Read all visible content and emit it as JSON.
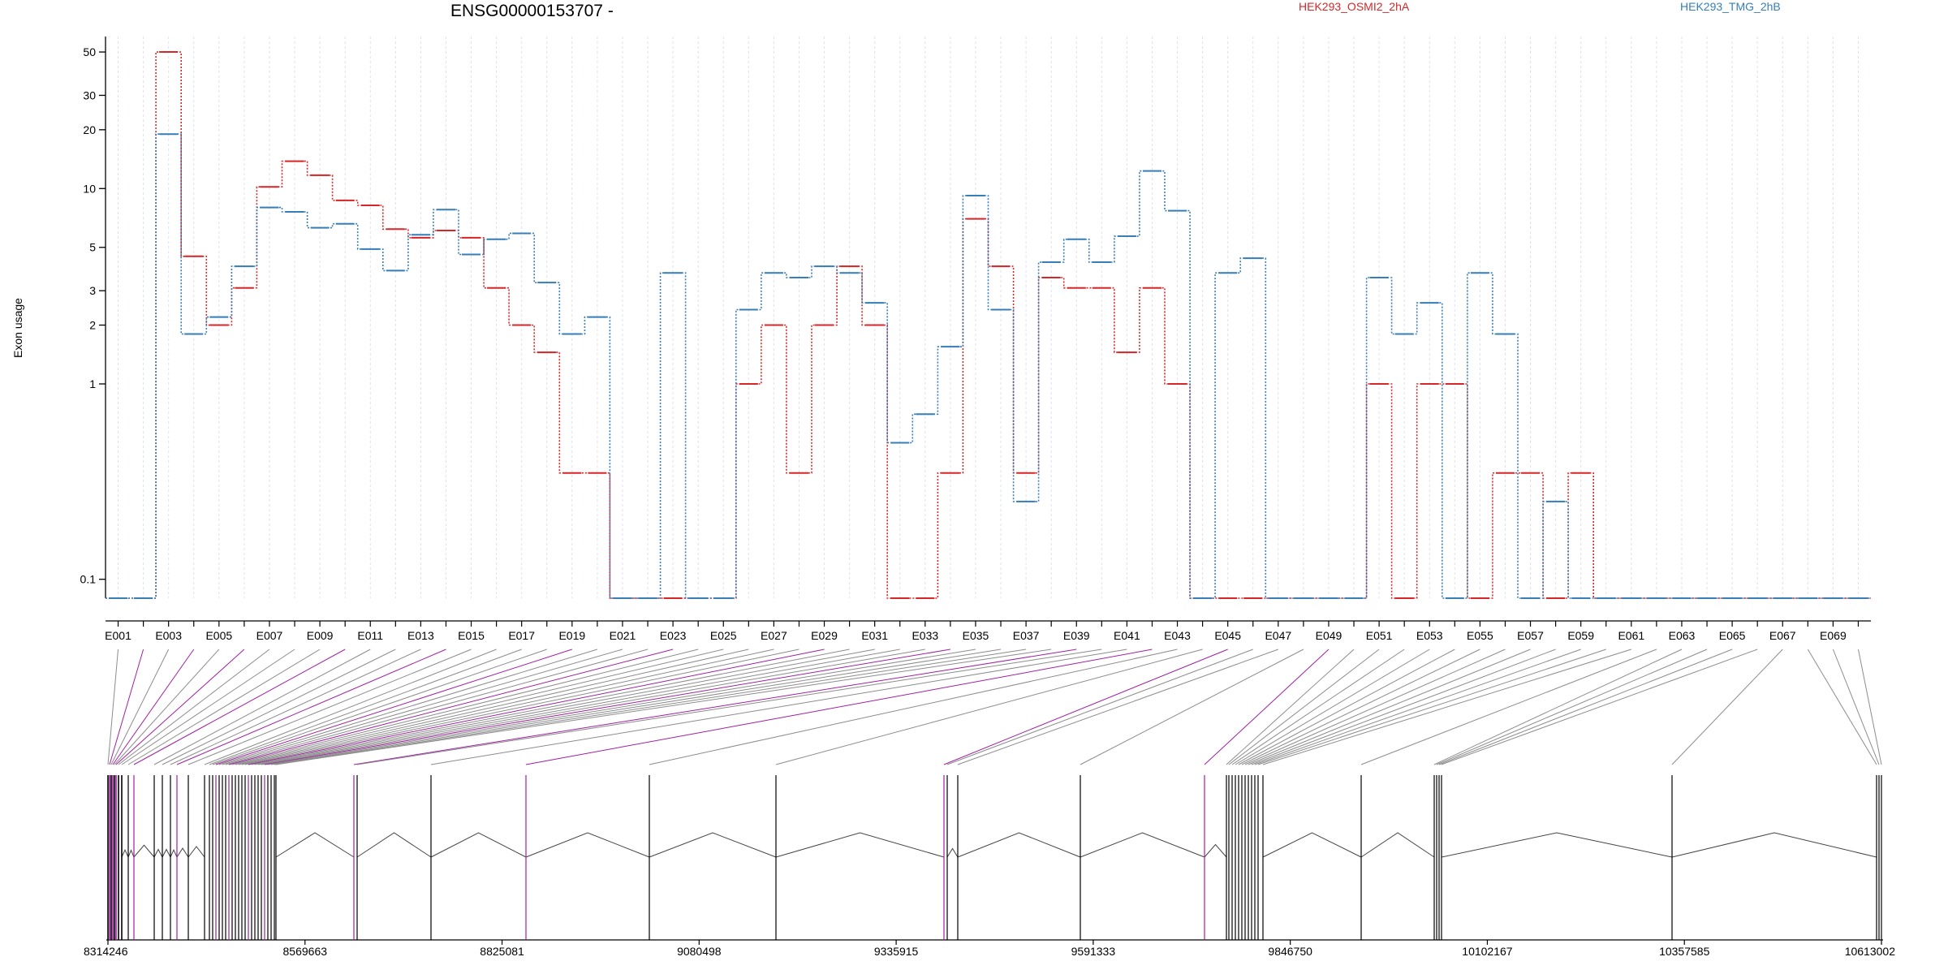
{
  "chart_data": {
    "type": "line",
    "title": "ENSG00000153707 -",
    "ylabel": "Exon usage",
    "xlabel": "",
    "y_scale": "log",
    "ylim": [
      0.08,
      60
    ],
    "y_ticks": [
      0.1,
      1,
      2,
      3,
      5,
      10,
      20,
      30,
      50
    ],
    "y_tick_labels": [
      "0.1",
      "1",
      "2",
      "3",
      "5",
      "10",
      "20",
      "30",
      "50"
    ],
    "grid": true,
    "legend_placement": "top-right",
    "exon_count": 70,
    "categories": [
      "E001",
      "E002",
      "E003",
      "E004",
      "E005",
      "E006",
      "E007",
      "E008",
      "E009",
      "E010",
      "E011",
      "E012",
      "E013",
      "E014",
      "E015",
      "E016",
      "E017",
      "E018",
      "E019",
      "E020",
      "E021",
      "E022",
      "E023",
      "E024",
      "E025",
      "E026",
      "E027",
      "E028",
      "E029",
      "E030",
      "E031",
      "E032",
      "E033",
      "E034",
      "E035",
      "E036",
      "E037",
      "E038",
      "E039",
      "E040",
      "E041",
      "E042",
      "E043",
      "E044",
      "E045",
      "E046",
      "E047",
      "E048",
      "E049",
      "E050",
      "E051",
      "E052",
      "E053",
      "E054",
      "E055",
      "E056",
      "E057",
      "E058",
      "E059",
      "E060",
      "E061",
      "E062",
      "E063",
      "E064",
      "E065",
      "E066",
      "E067",
      "E068",
      "E069",
      "E070"
    ],
    "x_tick_labels": [
      "E001",
      "E003",
      "E005",
      "E007",
      "E009",
      "E011",
      "E013",
      "E015",
      "E017",
      "E019",
      "E021",
      "E023",
      "E025",
      "E027",
      "E029",
      "E031",
      "E033",
      "E035",
      "E037",
      "E039",
      "E041",
      "E043",
      "E045",
      "E047",
      "E049",
      "E051",
      "E053",
      "E055",
      "E057",
      "E059",
      "E061",
      "E063",
      "E065",
      "E067",
      "E069"
    ],
    "series": [
      {
        "name": "HEK293_OSMI2_2hA",
        "color": "#d62728",
        "values": [
          0.08,
          0.08,
          50,
          4.5,
          2.0,
          3.1,
          10.2,
          13.8,
          11.7,
          8.7,
          8.2,
          6.2,
          5.6,
          6.1,
          5.6,
          3.1,
          2.0,
          1.45,
          0.35,
          0.35,
          0.08,
          0.08,
          0.08,
          0.08,
          0.08,
          1.0,
          2.0,
          0.35,
          2.0,
          4.0,
          2.0,
          0.08,
          0.08,
          0.35,
          7.0,
          4.0,
          0.35,
          3.5,
          3.1,
          3.1,
          1.45,
          3.1,
          1.0,
          0.08,
          0.08,
          0.08,
          0.08,
          0.08,
          0.08,
          0.08,
          1.0,
          0.08,
          1.0,
          1.0,
          0.08,
          0.35,
          0.35,
          0.08,
          0.35,
          0.08,
          0.08,
          0.08,
          0.08,
          0.08,
          0.08,
          0.08,
          0.08,
          0.08,
          0.08,
          0.08
        ]
      },
      {
        "name": "HEK293_TMG_2hB",
        "color": "#377eb8",
        "values": [
          0.08,
          0.08,
          19,
          1.8,
          2.2,
          4.0,
          8.0,
          7.6,
          6.3,
          6.6,
          4.9,
          3.8,
          5.8,
          7.8,
          4.6,
          5.5,
          5.9,
          3.3,
          1.8,
          2.2,
          0.08,
          0.08,
          3.7,
          0.08,
          0.08,
          2.4,
          3.7,
          3.5,
          4.0,
          3.7,
          2.6,
          0.5,
          0.7,
          1.55,
          9.2,
          2.4,
          0.25,
          4.2,
          5.5,
          4.2,
          5.7,
          12.3,
          7.7,
          0.08,
          3.7,
          4.4,
          0.08,
          0.08,
          0.08,
          0.08,
          3.5,
          1.8,
          2.6,
          0.08,
          3.7,
          1.8,
          0.08,
          0.25,
          0.08,
          0.08,
          0.08,
          0.08,
          0.08,
          0.08,
          0.08,
          0.08,
          0.08,
          0.08,
          0.08,
          0.08
        ]
      }
    ],
    "genomic_axis": {
      "ticks": [
        8314246,
        8569663,
        8825081,
        9080498,
        9335915,
        9591333,
        9846750,
        10102167,
        10357585,
        10613002
      ],
      "tick_labels": [
        "8314246",
        "8569663",
        "8825081",
        "9080498",
        "9335915",
        "9591333",
        "9846750",
        "10102167",
        "10357585",
        "10613002"
      ]
    }
  }
}
